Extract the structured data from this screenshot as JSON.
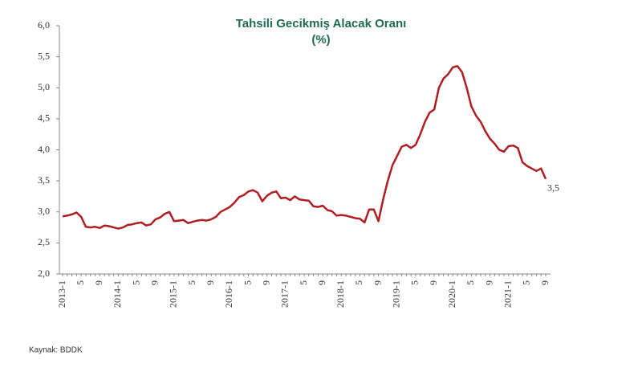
{
  "chart_data": {
    "type": "line",
    "title": "Tahsili Gecikmiş Alacak Oranı",
    "subtitle": "(%)",
    "source": "Kaynak: BDDK",
    "color": "#b01e22",
    "categories": [
      "2013-1",
      null,
      null,
      null,
      "5",
      null,
      null,
      null,
      "9",
      null,
      null,
      null,
      "2014-1",
      null,
      null,
      null,
      "5",
      null,
      null,
      null,
      "9",
      null,
      null,
      null,
      "2015-1",
      null,
      null,
      null,
      "5",
      null,
      null,
      null,
      "9",
      null,
      null,
      null,
      "2016-1",
      null,
      null,
      null,
      "5",
      null,
      null,
      null,
      "9",
      null,
      null,
      null,
      "2017-1",
      null,
      null,
      null,
      "5",
      null,
      null,
      null,
      "9",
      null,
      null,
      null,
      "2018-1",
      null,
      null,
      null,
      "5",
      null,
      null,
      null,
      "9",
      null,
      null,
      null,
      "2019-1",
      null,
      null,
      null,
      "5",
      null,
      null,
      null,
      "9",
      null,
      null,
      null,
      "2020-1",
      null,
      null,
      null,
      "5",
      null,
      null,
      null,
      "9",
      null,
      null,
      null,
      "2021-1",
      null,
      null,
      null,
      "5",
      null,
      null,
      null,
      "9"
    ],
    "values": [
      2.93,
      2.94,
      2.96,
      2.99,
      2.92,
      2.76,
      2.75,
      2.76,
      2.74,
      2.78,
      2.77,
      2.75,
      2.73,
      2.75,
      2.79,
      2.8,
      2.82,
      2.83,
      2.78,
      2.8,
      2.88,
      2.91,
      2.97,
      3.0,
      2.85,
      2.86,
      2.87,
      2.82,
      2.84,
      2.86,
      2.87,
      2.86,
      2.88,
      2.92,
      3.0,
      3.04,
      3.08,
      3.15,
      3.24,
      3.27,
      3.33,
      3.35,
      3.31,
      3.17,
      3.26,
      3.31,
      3.33,
      3.22,
      3.23,
      3.19,
      3.25,
      3.2,
      3.19,
      3.18,
      3.09,
      3.08,
      3.1,
      3.03,
      3.01,
      2.94,
      2.95,
      2.94,
      2.92,
      2.9,
      2.89,
      2.83,
      3.04,
      3.04,
      2.85,
      3.2,
      3.5,
      3.75,
      3.9,
      4.05,
      4.08,
      4.03,
      4.08,
      4.25,
      4.45,
      4.6,
      4.65,
      5.0,
      5.15,
      5.22,
      5.33,
      5.35,
      5.25,
      5.0,
      4.7,
      4.55,
      4.45,
      4.3,
      4.18,
      4.1,
      4.0,
      3.97,
      4.06,
      4.07,
      4.03,
      3.8,
      3.74,
      3.7,
      3.66,
      3.7,
      3.53
    ],
    "value_labels": [
      null,
      null,
      null,
      null,
      null,
      null,
      null,
      null,
      null,
      null,
      null,
      null,
      null,
      null,
      null,
      null,
      null,
      null,
      null,
      null,
      null,
      null,
      null,
      null,
      null,
      null,
      null,
      null,
      null,
      null,
      null,
      null,
      null,
      null,
      null,
      null,
      null,
      null,
      null,
      null,
      null,
      null,
      null,
      null,
      null,
      null,
      null,
      null,
      null,
      null,
      null,
      null,
      null,
      null,
      null,
      null,
      null,
      null,
      null,
      null,
      null,
      null,
      null,
      null,
      null,
      null,
      null,
      null,
      null,
      null,
      null,
      null,
      null,
      null,
      null,
      null,
      null,
      null,
      null,
      null,
      null,
      null,
      null,
      null,
      null,
      null,
      null,
      null,
      null,
      null,
      null,
      null,
      null,
      null,
      null,
      null,
      null,
      null,
      null,
      null,
      null,
      null,
      null,
      null,
      "3,5"
    ],
    "ylim": [
      2,
      6
    ],
    "yticks": [
      {
        "value": 2,
        "label": "2,0"
      },
      {
        "value": 2.5,
        "label": "2,5"
      },
      {
        "value": 3,
        "label": "3,0"
      },
      {
        "value": 3.5,
        "label": "3,5"
      },
      {
        "value": 4,
        "label": "4,0"
      },
      {
        "value": 4.5,
        "label": "4,5"
      },
      {
        "value": 5,
        "label": "5,0"
      },
      {
        "value": 5.5,
        "label": "5,5"
      },
      {
        "value": 6,
        "label": "6,0"
      }
    ],
    "grid": false
  }
}
